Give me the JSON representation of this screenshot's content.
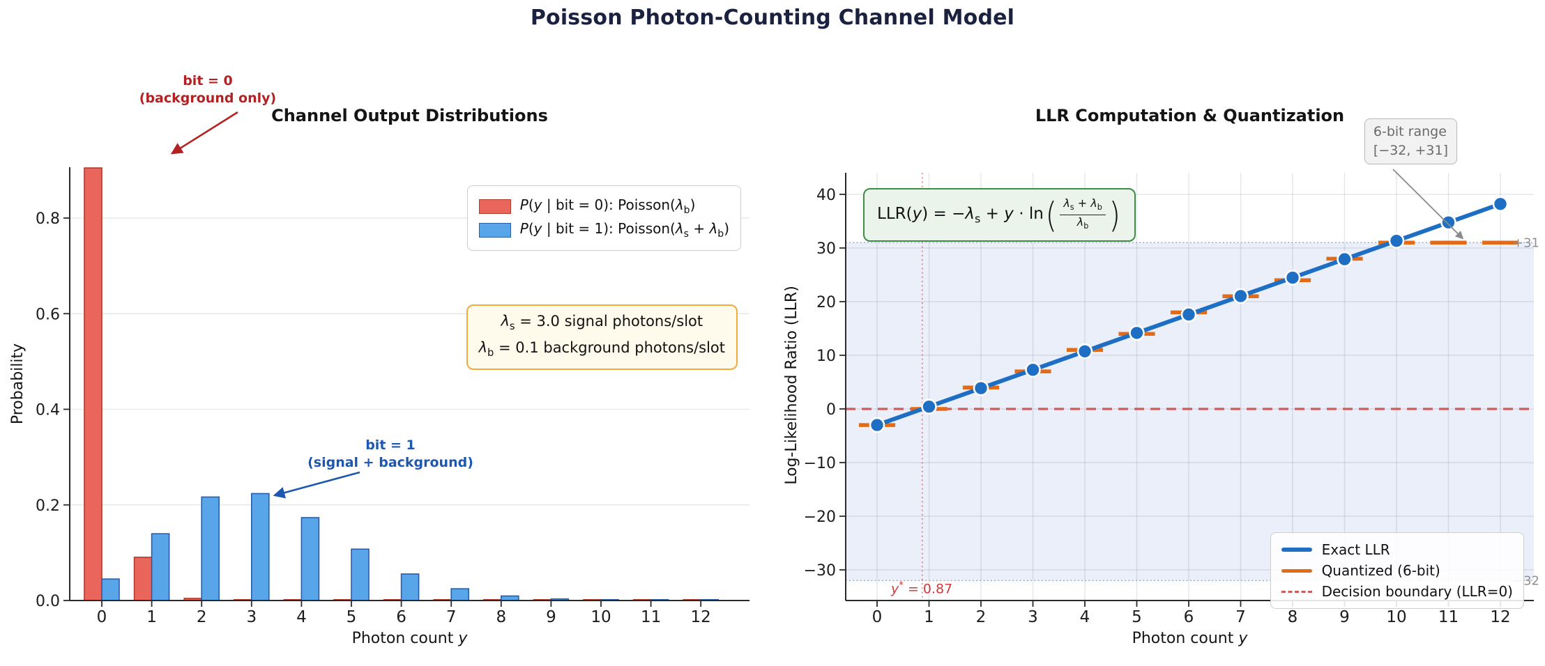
{
  "figure_title": "Poisson Photon-Counting Channel Model",
  "chart_data": [
    {
      "type": "bar",
      "title": "Channel Output Distributions",
      "xlabel": "Photon count *y*",
      "ylabel": "Probability",
      "categories": [
        0,
        1,
        2,
        3,
        4,
        5,
        6,
        7,
        8,
        9,
        10,
        11,
        12
      ],
      "series": [
        {
          "name": "*P*(*y* | bit = 0): Poisson(*λ*_{b})",
          "fill": "#ea655c",
          "edge": "#b03a2c",
          "values": [
            0.9048,
            0.0905,
            0.0045,
            0.0002,
            0,
            0,
            0,
            0,
            0,
            0,
            0,
            0,
            0
          ]
        },
        {
          "name": "*P*(*y* | bit = 1): Poisson(*λ*_{s} + *λ*_{b})",
          "fill": "#58a5ea",
          "edge": "#2a5da8",
          "values": [
            0.045,
            0.1397,
            0.2165,
            0.2237,
            0.1734,
            0.1075,
            0.0555,
            0.0246,
            0.0095,
            0.0033,
            0.001,
            0.0003,
            0.0001
          ]
        }
      ],
      "yticks": [
        0.0,
        0.2,
        0.4,
        0.6,
        0.8
      ],
      "ylim": [
        0,
        0.907
      ],
      "grid": "horizontal",
      "legend_position": "upper right"
    },
    {
      "type": "line",
      "title": "LLR Computation & Quantization",
      "xlabel": "Photon count *y*",
      "ylabel": "Log-Likelihood Ratio (LLR)",
      "x": [
        0,
        1,
        2,
        3,
        4,
        5,
        6,
        7,
        8,
        9,
        10,
        11,
        12
      ],
      "series": [
        {
          "name": "Exact LLR",
          "style": "line-markers",
          "color": "#1e6fc4",
          "values": [
            -3.0,
            0.43,
            3.87,
            7.3,
            10.74,
            14.17,
            17.6,
            21.04,
            24.47,
            27.91,
            31.34,
            34.77,
            38.21
          ]
        },
        {
          "name": "Quantized (6-bit)",
          "style": "segments",
          "color": "#e26b1a",
          "segment_halfwidth": 0.35,
          "values": [
            -3,
            0,
            4,
            7,
            11,
            14,
            18,
            21,
            24,
            28,
            31,
            31,
            31
          ]
        },
        {
          "name": "Decision boundary (LLR=0)",
          "style": "dashed-hline",
          "color": "#cd5c5c",
          "value": 0
        }
      ],
      "xticks": [
        0,
        1,
        2,
        3,
        4,
        5,
        6,
        7,
        8,
        9,
        10,
        11,
        12
      ],
      "yticks": [
        -30,
        -20,
        -10,
        0,
        10,
        20,
        30,
        40
      ],
      "ylim": [
        -35.7,
        43.2
      ],
      "grid": "both",
      "quant_band": {
        "min": -32,
        "max": 31,
        "label_max": "+31",
        "label_min": "−32",
        "fill": "rgba(205,216,240,0.42)"
      },
      "threshold": {
        "x": 0.87,
        "label": "*y*^{*} = 0.87"
      },
      "legend_position": "lower right"
    }
  ],
  "annotations": {
    "bit0": {
      "line1": "bit = 0",
      "line2": "(background only)"
    },
    "bit1": {
      "line1": "bit = 1",
      "line2": "(signal + background)"
    },
    "params": {
      "line1": "*λ*_{s} = 3.0 signal photons/slot",
      "line2": "*λ*_{b} = 0.1 background photons/slot"
    },
    "formula": {
      "lhs": "LLR(*y*) = −*λ*_{s} + *y* · ln",
      "numerator": "*λ*_{s} + *λ*_{b}",
      "denominator": "*λ*_{b}"
    },
    "range_callout": {
      "line1": "6-bit range",
      "line2": "[−32, +31]"
    }
  }
}
